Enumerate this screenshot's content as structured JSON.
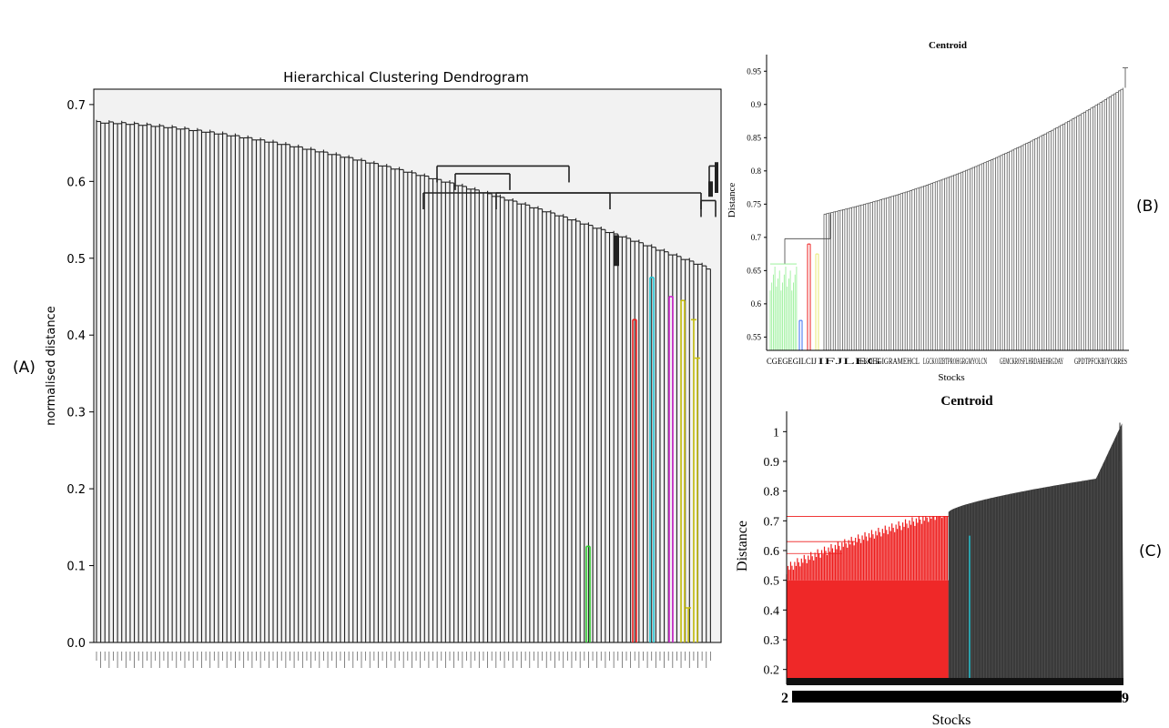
{
  "panel_labels": {
    "a": "(A)",
    "b": "(B)",
    "c": "(C)"
  },
  "colors": {
    "black": "#222222",
    "green": "#2ecc2e",
    "red": "#ee1c1c",
    "cyan": "#22c7d6",
    "magenta": "#cc22cc",
    "yellow": "#c8c010",
    "gray": "#444444",
    "light_green": "#8fef8f",
    "blue": "#3a6df0",
    "light_yellow": "#e8e870"
  },
  "chart_data": [
    {
      "id": "A",
      "type": "dendrogram",
      "title": "Hierarchical Clustering Dendrogram",
      "xlabel": "",
      "ylabel": "normalised distance",
      "ylim": [
        0.0,
        0.72
      ],
      "yticks": [
        0.0,
        0.1,
        0.2,
        0.3,
        0.4,
        0.5,
        0.6,
        0.7
      ],
      "ytick_labels": [
        "0.0",
        "0.1",
        "0.2",
        "0.3",
        "0.4",
        "0.5",
        "0.6",
        "0.7"
      ],
      "leaf_count": 147,
      "leaf_heights_start": 0.68,
      "leaf_heights_end": 0.49,
      "colored_clusters": [
        {
          "color": "green",
          "height": 0.125
        },
        {
          "color": "red",
          "height": 0.42
        },
        {
          "color": "cyan",
          "height": 0.475
        },
        {
          "color": "magenta",
          "height": 0.45
        },
        {
          "color": "yellow",
          "height": 0.445
        }
      ],
      "top_merges": [
        0.62,
        0.61,
        0.585,
        0.58,
        0.575,
        0.62
      ]
    },
    {
      "id": "B",
      "type": "dendrogram",
      "title": "Centroid",
      "xlabel": "Stocks",
      "ylabel": "Distance",
      "ylim": [
        0.53,
        0.975
      ],
      "yticks": [
        0.55,
        0.6,
        0.65,
        0.7,
        0.75,
        0.8,
        0.85,
        0.9,
        0.95
      ],
      "ytick_labels": [
        "0.55",
        "0.6",
        "0.65",
        "0.7",
        "0.75",
        "0.8",
        "0.85",
        "0.9",
        "0.95"
      ],
      "leaf_count": 130,
      "leaf_heights_start": 0.735,
      "leaf_heights_end": 0.925,
      "top_merge": 0.955,
      "colored_clusters": [
        {
          "color": "light_green",
          "height": 0.66
        },
        {
          "color": "blue",
          "height": 0.575
        },
        {
          "color": "red",
          "height": 0.69
        },
        {
          "color": "light_yellow",
          "height": 0.675
        }
      ],
      "xtick_labels": [
        "CGEGEGILCIJ",
        "IFJLEG",
        "ELKOHGIGRAMEHCL",
        "LGCKOJZBTPROHGRGMYOLCN",
        "GEMCKROSFLHRDAREHRGDAY",
        "GPDTPFCKBJYCRRES"
      ]
    },
    {
      "id": "C",
      "type": "dendrogram",
      "title": "Centroid",
      "xlabel": "Stocks",
      "ylabel": "Distance",
      "ylim": [
        0.15,
        1.05
      ],
      "yticks": [
        0.2,
        0.3,
        0.4,
        0.5,
        0.6,
        0.7,
        0.8,
        0.9,
        1.0
      ],
      "ytick_labels": [
        "0.2",
        "0.3",
        "0.4",
        "0.5",
        "0.6",
        "0.7",
        "0.8",
        "0.9",
        "1"
      ],
      "red_leaf_count": 120,
      "red_height_range": [
        0.5,
        0.715
      ],
      "gray_leaf_count": 120,
      "gray_height_range": [
        0.73,
        1.03
      ],
      "cyan_height": 0.65,
      "xtick_labels": [
        "2",
        "9"
      ]
    }
  ]
}
